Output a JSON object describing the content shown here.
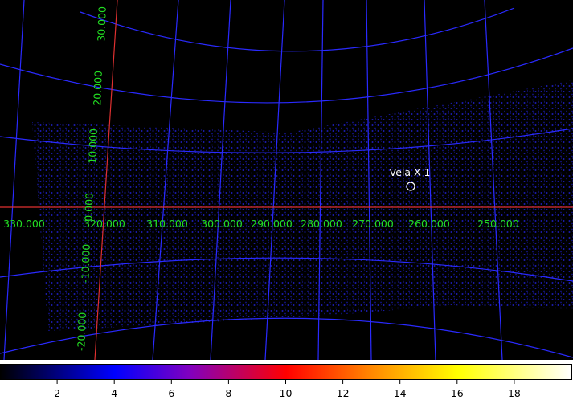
{
  "image": {
    "longitude_labels": [
      "330.000",
      "320.000",
      "310.000",
      "300.000",
      "290.000",
      "280.000",
      "270.000",
      "260.000",
      "250.000"
    ],
    "latitude_labels": [
      "30.000",
      "20.000",
      "10.000",
      "0.000",
      "-10.000",
      "-20.000"
    ],
    "source": {
      "label": "Vela X-1"
    }
  },
  "colorbar": {
    "range": [
      0,
      20
    ],
    "ticks": [
      2,
      4,
      6,
      8,
      10,
      12,
      14,
      16,
      18
    ]
  }
}
